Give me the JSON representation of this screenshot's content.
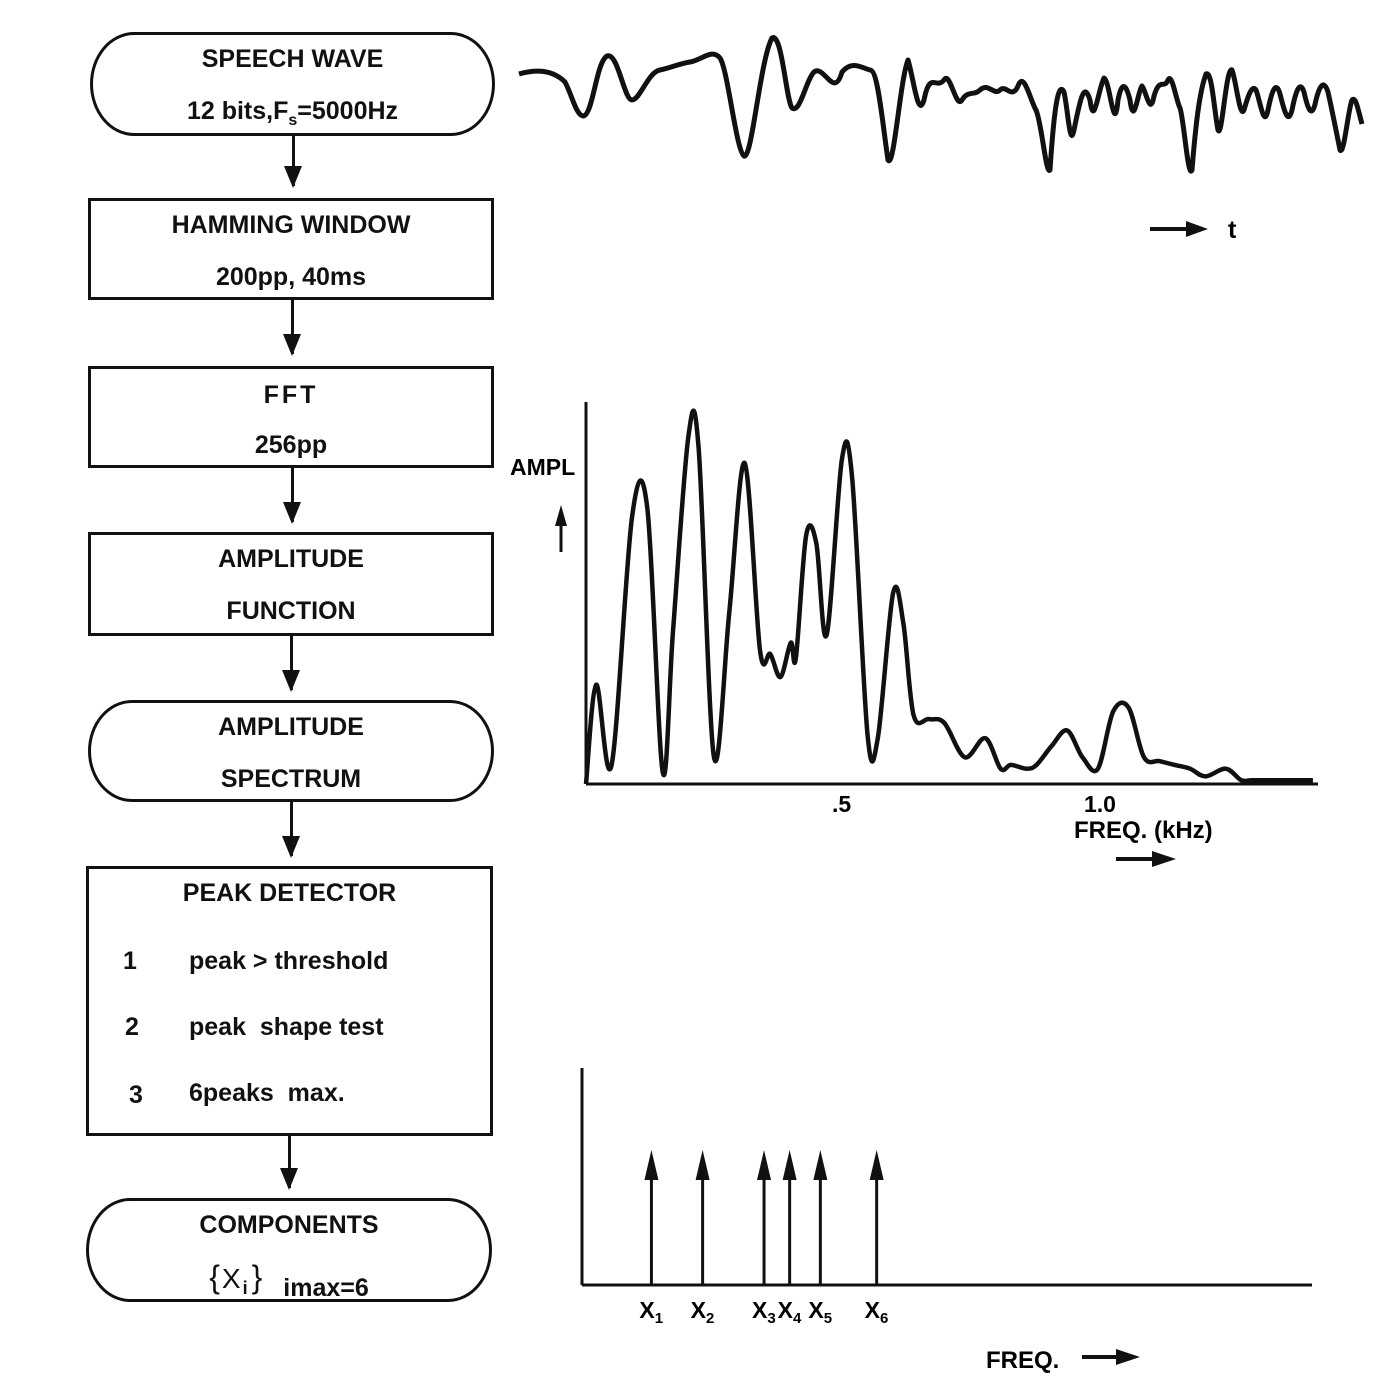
{
  "flowchart": {
    "speech_wave": {
      "title": "SPEECH WAVE",
      "detail_pre": "12 bits,F",
      "detail_sub": "s",
      "detail_post": "=5000Hz"
    },
    "hamming": {
      "title": "HAMMING WINDOW",
      "detail": "200pp, 40ms"
    },
    "fft": {
      "title": "FFT",
      "detail": "256pp"
    },
    "amp_function": {
      "line1": "AMPLITUDE",
      "line2": "FUNCTION"
    },
    "amp_spectrum": {
      "line1": "AMPLITUDE",
      "line2": "SPECTRUM"
    },
    "peak_detector": {
      "title": "PEAK DETECTOR",
      "steps": [
        {
          "num": "1",
          "text": "peak > threshold"
        },
        {
          "num": "2",
          "text": "peak  shape test"
        },
        {
          "num": "3",
          "text": "6peaks  max."
        }
      ]
    },
    "components": {
      "title": "COMPONENTS",
      "set_open": "{",
      "set_var": "X",
      "set_sub": "i",
      "set_close": "}",
      "imax": "imax=6"
    }
  },
  "waveform": {
    "time_label": "t"
  },
  "spectrum": {
    "y_label": "AMPL",
    "x_ticks": [
      ".5",
      "1.0"
    ],
    "x_label": "FREQ. (kHz)"
  },
  "components_plot": {
    "peak_labels": [
      {
        "base": "X",
        "sub": "1"
      },
      {
        "base": "X",
        "sub": "2"
      },
      {
        "base": "X",
        "sub": "3"
      },
      {
        "base": "X",
        "sub": "4"
      },
      {
        "base": "X",
        "sub": "5"
      },
      {
        "base": "X",
        "sub": "6"
      }
    ],
    "x_label": "FREQ."
  },
  "chart_data": [
    {
      "type": "line",
      "name": "spectrum",
      "x_unit": "kHz",
      "xlim": [
        0,
        1.43
      ],
      "x": [
        0.0,
        0.02,
        0.05,
        0.09,
        0.12,
        0.15,
        0.17,
        0.2,
        0.22,
        0.25,
        0.28,
        0.31,
        0.34,
        0.36,
        0.38,
        0.4,
        0.41,
        0.43,
        0.45,
        0.47,
        0.5,
        0.52,
        0.55,
        0.57,
        0.6,
        0.62,
        0.64,
        0.67,
        0.7,
        0.74,
        0.78,
        0.81,
        0.83,
        0.86,
        0.88,
        0.91,
        0.94,
        0.97,
        1.0,
        1.03,
        1.06,
        1.09,
        1.12,
        1.15,
        1.18,
        1.21,
        1.25,
        1.28,
        1.3,
        1.33,
        1.37,
        1.42
      ],
      "y": [
        0,
        0.26,
        0.05,
        0.7,
        0.72,
        0.03,
        0.4,
        0.91,
        0.88,
        0.07,
        0.45,
        0.84,
        0.35,
        0.34,
        0.28,
        0.37,
        0.33,
        0.65,
        0.63,
        0.39,
        0.85,
        0.8,
        0.13,
        0.12,
        0.5,
        0.42,
        0.18,
        0.17,
        0.16,
        0.07,
        0.12,
        0.04,
        0.05,
        0.04,
        0.05,
        0.1,
        0.14,
        0.07,
        0.04,
        0.19,
        0.2,
        0.07,
        0.06,
        0.05,
        0.04,
        0.02,
        0.04,
        0.01,
        0.01,
        0.01,
        0.01,
        0.01
      ],
      "x_ticks": [
        0.5,
        1.0
      ],
      "xlabel": "FREQ. (kHz)",
      "ylabel": "AMPL"
    },
    {
      "type": "bar",
      "name": "components",
      "categories": [
        "X1",
        "X2",
        "X3",
        "X4",
        "X5",
        "X6"
      ],
      "positions": [
        0.12,
        0.22,
        0.34,
        0.39,
        0.45,
        0.56
      ],
      "values": [
        1,
        1,
        1,
        1,
        1,
        1
      ],
      "xlabel": "FREQ."
    }
  ]
}
